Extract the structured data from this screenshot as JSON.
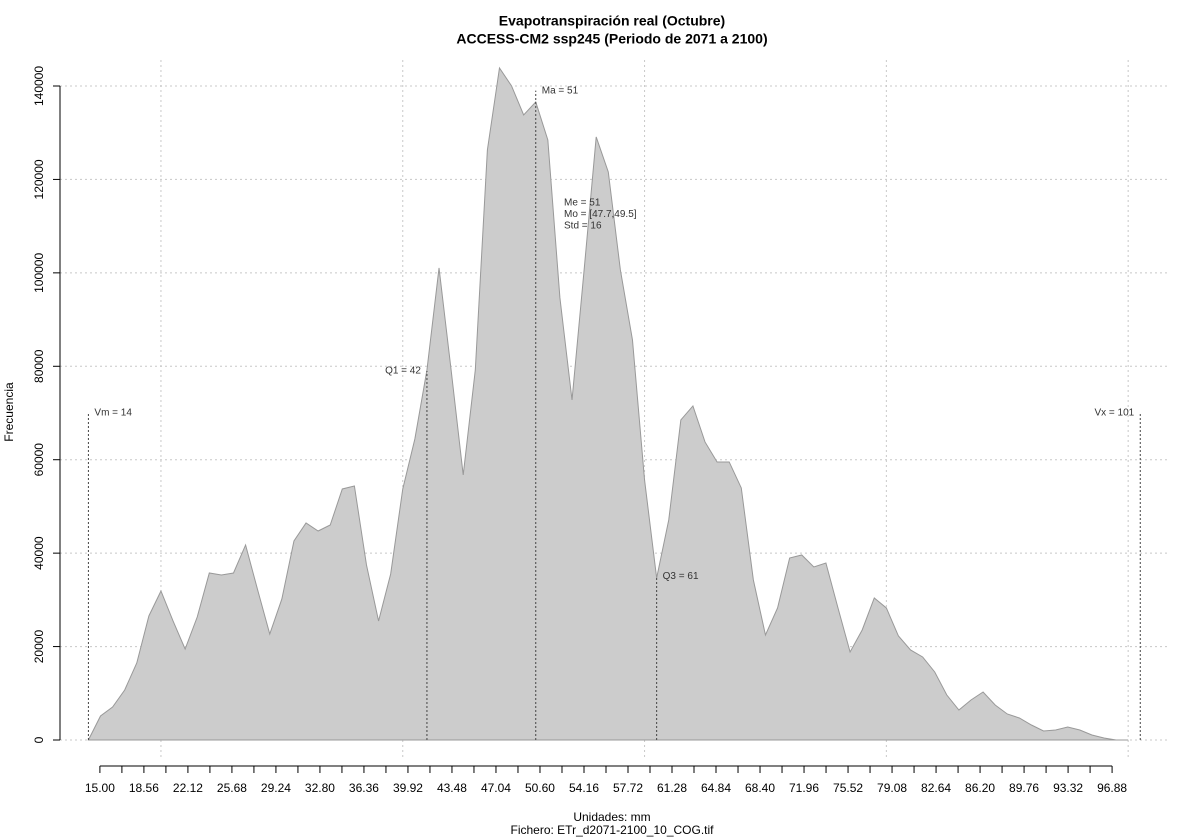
{
  "chart_data": {
    "type": "area",
    "title": "Evapotranspiración real (Octubre)",
    "subtitle": "ACCESS-CM2 ssp245 (Periodo de 2071 a 2100)",
    "xlabel": "Unidades: mm",
    "caption": "Fichero: ETr_d2071-2100_10_COG.tif",
    "ylabel": "Frecuencia",
    "color": "#cccccc",
    "line_color": "#999999",
    "x": [
      14,
      15,
      16,
      17,
      18,
      19,
      20,
      21,
      22,
      23,
      24,
      25,
      26,
      27,
      28,
      29,
      30,
      31,
      32,
      33,
      34,
      35,
      36,
      37,
      38,
      39,
      40,
      41,
      42,
      43,
      44,
      45,
      46,
      47,
      48,
      49,
      50,
      51,
      52,
      53,
      54,
      55,
      56,
      57,
      58,
      59,
      60,
      61,
      62,
      63,
      64,
      65,
      66,
      67,
      68,
      69,
      70,
      71,
      72,
      73,
      74,
      75,
      76,
      77,
      78,
      79,
      80,
      81,
      82,
      83,
      84,
      85,
      86,
      87,
      88,
      89,
      90,
      91,
      92,
      93,
      94,
      95,
      96,
      97,
      98,
      99,
      100
    ],
    "values": [
      0,
      5140,
      7060,
      10700,
      16480,
      26550,
      31900,
      25480,
      19480,
      26330,
      35750,
      35320,
      35750,
      41750,
      32110,
      22690,
      30190,
      42600,
      46460,
      44740,
      46030,
      53740,
      54380,
      37470,
      25480,
      35540,
      53740,
      64440,
      79210,
      101050,
      79210,
      56730,
      79210,
      126310,
      143870,
      140010,
      133800,
      136590,
      128450,
      94630,
      72790,
      100620,
      129100,
      121600,
      100620,
      85640,
      55660,
      34680,
      47100,
      68510,
      71510,
      63800,
      59520,
      59520,
      53950,
      34250,
      22480,
      28260,
      38960,
      39610,
      37040,
      37890,
      28260,
      18840,
      23550,
      30400,
      28260,
      22260,
      19270,
      17770,
      14560,
      9630,
      6420,
      8560,
      10280,
      7490,
      5570,
      4710,
      3210,
      1930,
      2140,
      2780,
      2140,
      1070,
      430,
      0,
      0
    ],
    "xlim": [
      11.65,
      103.46
    ],
    "ylim": [
      -4282,
      145566
    ],
    "xticks": [
      {
        "value": 14.95,
        "label": "15.00"
      },
      {
        "value": 18.59,
        "label": "18.56"
      },
      {
        "value": 22.23,
        "label": "22.12"
      },
      {
        "value": 25.87,
        "label": "25.68"
      },
      {
        "value": 29.51,
        "label": "29.24"
      },
      {
        "value": 33.15,
        "label": "32.80"
      },
      {
        "value": 36.79,
        "label": "36.36"
      },
      {
        "value": 40.43,
        "label": "39.92"
      },
      {
        "value": 44.07,
        "label": "43.48"
      },
      {
        "value": 47.71,
        "label": "47.04"
      },
      {
        "value": 51.35,
        "label": "50.60"
      },
      {
        "value": 54.99,
        "label": "54.16"
      },
      {
        "value": 58.63,
        "label": "57.72"
      },
      {
        "value": 62.27,
        "label": "61.28"
      },
      {
        "value": 65.91,
        "label": "64.84"
      },
      {
        "value": 69.55,
        "label": "68.40"
      },
      {
        "value": 73.19,
        "label": "71.96"
      },
      {
        "value": 76.83,
        "label": "75.52"
      },
      {
        "value": 80.47,
        "label": "79.08"
      },
      {
        "value": 84.11,
        "label": "82.64"
      },
      {
        "value": 87.75,
        "label": "86.20"
      },
      {
        "value": 91.39,
        "label": "89.76"
      },
      {
        "value": 95.03,
        "label": "93.32"
      },
      {
        "value": 98.67,
        "label": "96.88"
      }
    ],
    "xminorticks": [
      16.77,
      20.41,
      24.05,
      27.69,
      31.33,
      34.97,
      38.61,
      42.25,
      45.89,
      49.53,
      53.17,
      56.81,
      60.45,
      64.09,
      67.73,
      71.37,
      75.01,
      78.65,
      82.29,
      85.93,
      89.57,
      93.21,
      96.85
    ],
    "yticks": [
      0,
      20000,
      40000,
      60000,
      80000,
      100000,
      120000,
      140000
    ],
    "xgrid": [
      20,
      40,
      60,
      80,
      100
    ],
    "grid": true,
    "vlines": [
      {
        "x": 14,
        "height": 70000,
        "label": "Vm = 14"
      },
      {
        "x": 42,
        "height": 79000,
        "label": "Q1 = 42"
      },
      {
        "x": 51,
        "height": 139000,
        "label": "Ma = 51"
      },
      {
        "x": 61,
        "height": 35000,
        "label": "Q3 = 61"
      },
      {
        "x": 101,
        "height": 70000,
        "label": "Vx = 101"
      }
    ],
    "stats": [
      "Me = 51",
      "Mo = [47.7,49.5]",
      "Std = 16"
    ]
  }
}
